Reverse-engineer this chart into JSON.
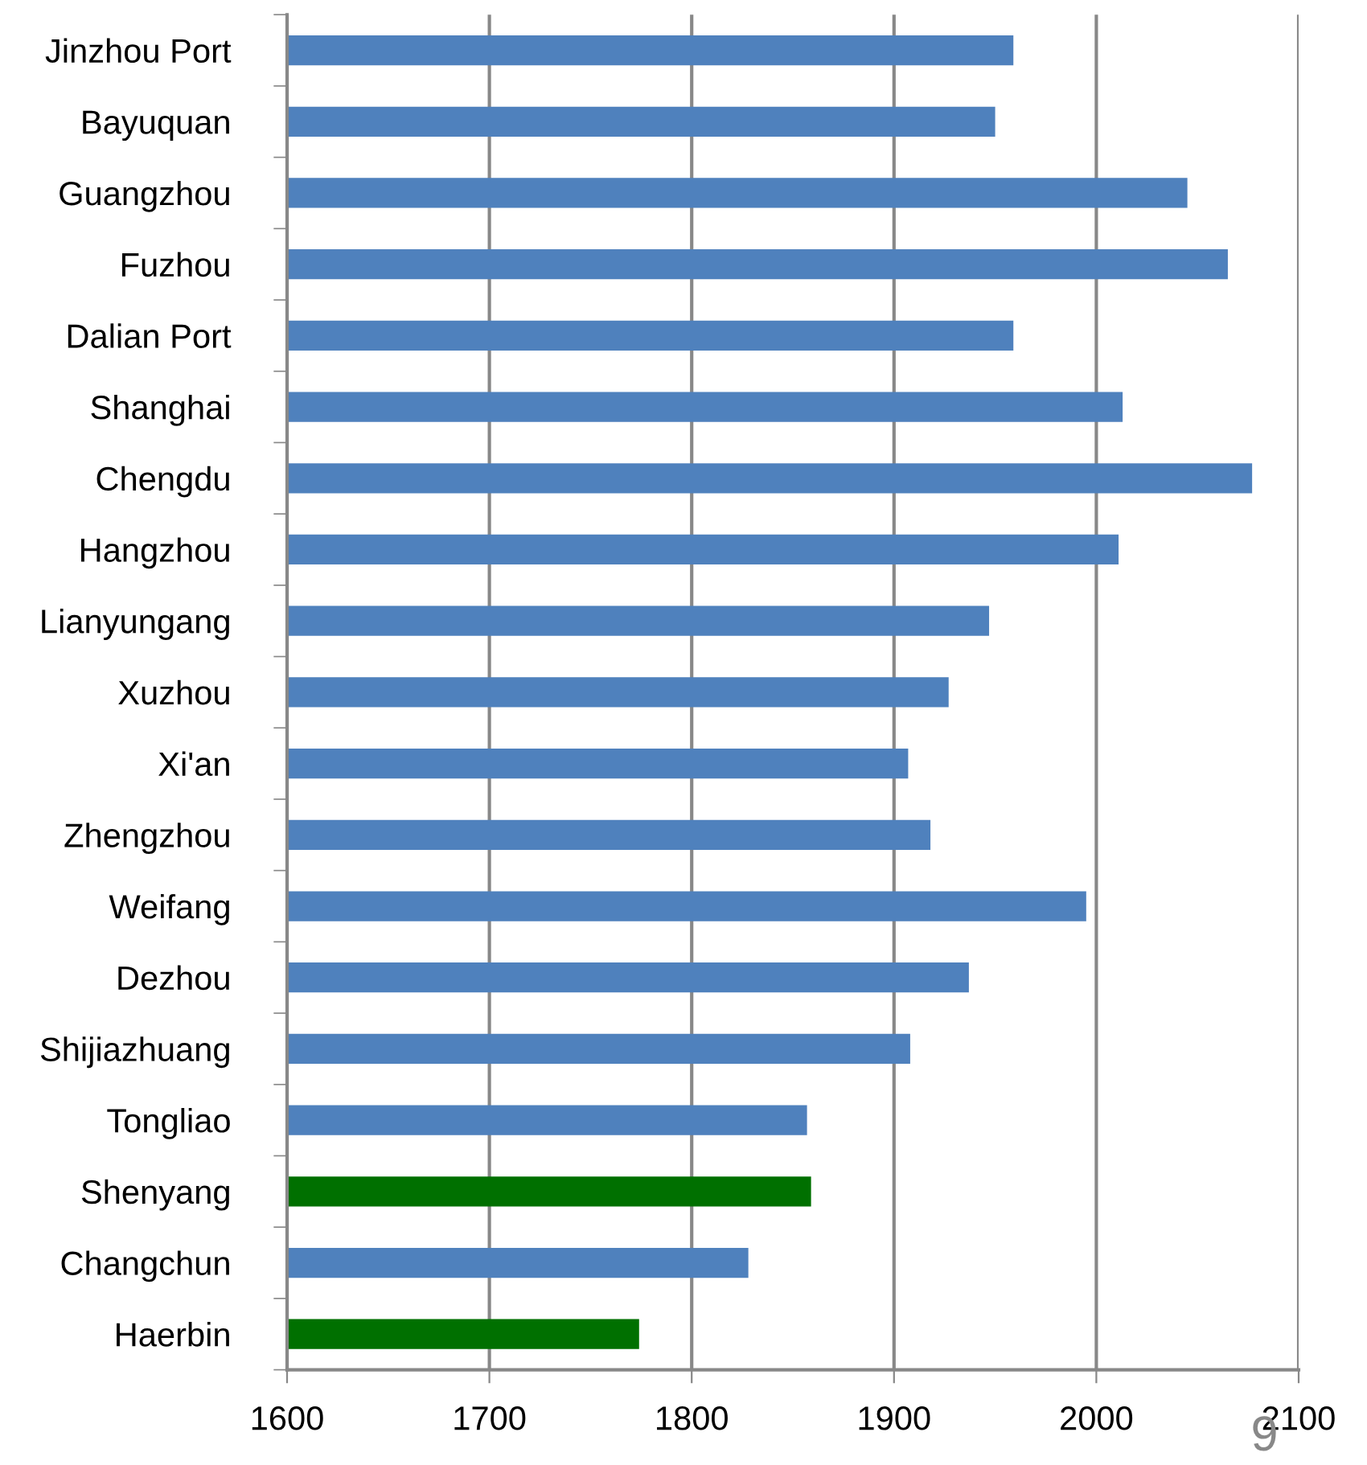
{
  "chart_data": {
    "type": "bar",
    "orientation": "horizontal",
    "categories": [
      "Jinzhou Port",
      "Bayuquan",
      "Guangzhou",
      "Fuzhou",
      "Dalian Port",
      "Shanghai",
      "Chengdu",
      "Hangzhou",
      "Lianyungang",
      "Xuzhou",
      "Xi'an",
      "Zhengzhou",
      "Weifang",
      "Dezhou",
      "Shijiazhuang",
      "Tongliao",
      "Shenyang",
      "Changchun",
      "Haerbin"
    ],
    "values": [
      1959,
      1950,
      2045,
      2065,
      1959,
      2013,
      2077,
      2011,
      1947,
      1927,
      1907,
      1918,
      1995,
      1937,
      1908,
      1857,
      1859,
      1828,
      1774
    ],
    "colors": [
      "#4f81bd",
      "#4f81bd",
      "#4f81bd",
      "#4f81bd",
      "#4f81bd",
      "#4f81bd",
      "#4f81bd",
      "#4f81bd",
      "#4f81bd",
      "#4f81bd",
      "#4f81bd",
      "#4f81bd",
      "#4f81bd",
      "#4f81bd",
      "#4f81bd",
      "#4f81bd",
      "#007000",
      "#4f81bd",
      "#007000"
    ],
    "xlim": [
      1600,
      2100
    ],
    "xticks": [
      1600,
      1700,
      1800,
      1900,
      2000,
      2100
    ],
    "grid": "x",
    "annotations": [
      "9"
    ]
  }
}
